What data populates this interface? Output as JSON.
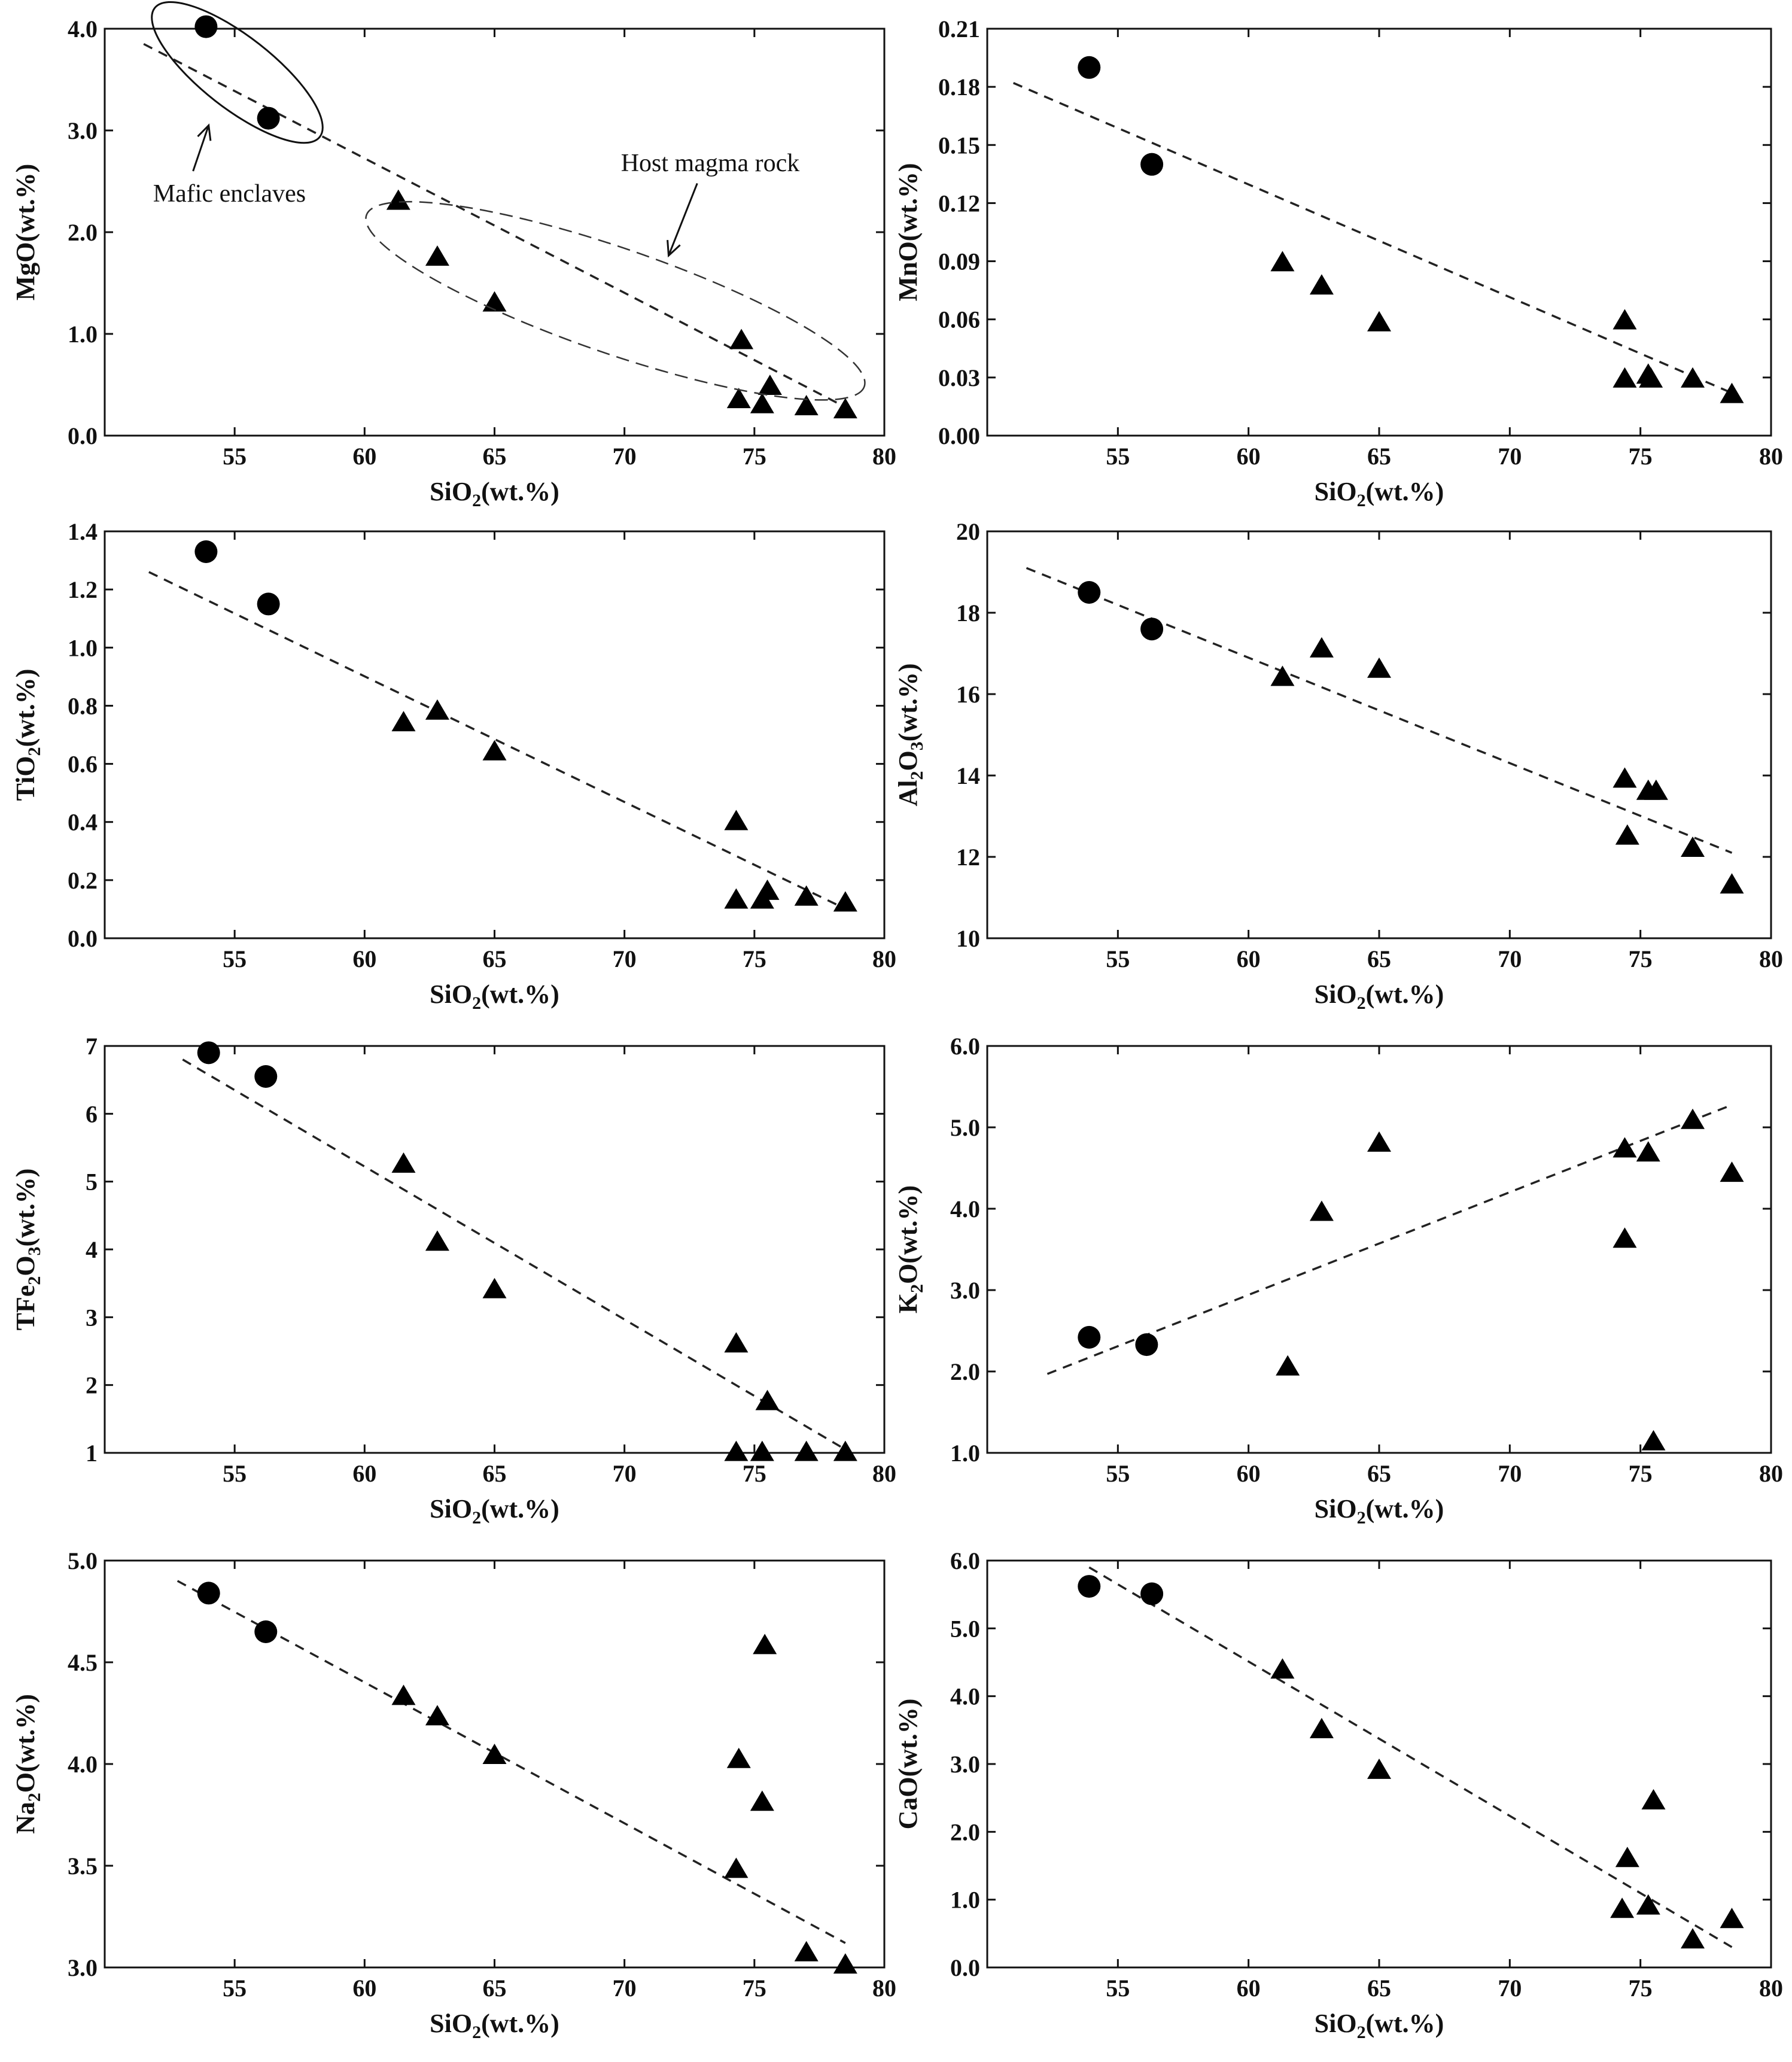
{
  "chart_data": [
    {
      "type": "scatter",
      "panel": "MgO",
      "ylabel_main": "MgO",
      "ylabel_sub": "",
      "ylabel_tail": "",
      "ylabel_unit": "(wt.%)",
      "xlabel_main": "SiO",
      "xlabel_sub": "2",
      "xlabel_unit": "(wt.%)",
      "xlim": [
        50,
        80
      ],
      "ylim": [
        0,
        4
      ],
      "xticks": [
        55,
        60,
        65,
        70,
        75,
        80
      ],
      "yticks": [
        0,
        1,
        2,
        3,
        4
      ],
      "yticks_labels": [
        "0.0",
        "1.0",
        "2.0",
        "3.0",
        "4.0"
      ],
      "series": [
        {
          "name": "Mafic enclaves",
          "marker": "circle",
          "x": [
            53.9,
            56.3
          ],
          "y": [
            4.02,
            3.12
          ]
        },
        {
          "name": "Host magma rock",
          "marker": "triangle",
          "x": [
            61.3,
            62.8,
            65.0,
            74.5,
            74.4,
            75.3,
            75.6,
            77.0,
            78.5
          ],
          "y": [
            2.3,
            1.75,
            1.3,
            0.93,
            0.35,
            0.3,
            0.48,
            0.28,
            0.25
          ]
        }
      ],
      "trend": [
        [
          51.5,
          3.85
        ],
        [
          78.5,
          0.28
        ]
      ],
      "annotations": [
        {
          "text": "Mafic enclaves",
          "x": 54.8,
          "y": 2.3
        },
        {
          "text": "Host magma rock",
          "x": 73.3,
          "y": 2.6
        }
      ]
    },
    {
      "type": "scatter",
      "panel": "MnO",
      "ylabel_main": "MnO",
      "ylabel_sub": "",
      "ylabel_tail": "",
      "ylabel_unit": "(wt.%)",
      "xlabel_main": "SiO",
      "xlabel_sub": "2",
      "xlabel_unit": "(wt.%)",
      "xlim": [
        50,
        80
      ],
      "ylim": [
        0,
        0.21
      ],
      "xticks": [
        55,
        60,
        65,
        70,
        75,
        80
      ],
      "yticks": [
        0,
        0.03,
        0.06,
        0.09,
        0.12,
        0.15,
        0.18,
        0.21
      ],
      "yticks_labels": [
        "0.00",
        "0.03",
        "0.06",
        "0.09",
        "0.12",
        "0.15",
        "0.18",
        "0.21"
      ],
      "series": [
        {
          "name": "Mafic enclaves",
          "marker": "circle",
          "x": [
            53.9,
            56.3
          ],
          "y": [
            0.19,
            0.14
          ]
        },
        {
          "name": "Host magma rock",
          "marker": "triangle",
          "x": [
            61.3,
            62.8,
            65.0,
            74.4,
            74.4,
            75.3,
            75.4,
            77.0,
            78.5
          ],
          "y": [
            0.089,
            0.077,
            0.058,
            0.059,
            0.029,
            0.031,
            0.029,
            0.029,
            0.021
          ]
        }
      ],
      "trend": [
        [
          51.0,
          0.182
        ],
        [
          78.5,
          0.022
        ]
      ],
      "annotations": []
    },
    {
      "type": "scatter",
      "panel": "TiO2",
      "ylabel_main": "TiO",
      "ylabel_sub": "2",
      "ylabel_tail": "",
      "ylabel_unit": "(wt.%)",
      "xlabel_main": "SiO",
      "xlabel_sub": "2",
      "xlabel_unit": "(wt.%)",
      "xlim": [
        50,
        80
      ],
      "ylim": [
        0,
        1.4
      ],
      "xticks": [
        55,
        60,
        65,
        70,
        75,
        80
      ],
      "yticks": [
        0,
        0.2,
        0.4,
        0.6,
        0.8,
        1.0,
        1.2,
        1.4
      ],
      "yticks_labels": [
        "0.0",
        "0.2",
        "0.4",
        "0.6",
        "0.8",
        "1.0",
        "1.2",
        "1.4"
      ],
      "series": [
        {
          "name": "Mafic enclaves",
          "marker": "circle",
          "x": [
            53.9,
            56.3
          ],
          "y": [
            1.33,
            1.15
          ]
        },
        {
          "name": "Host magma rock",
          "marker": "triangle",
          "x": [
            61.5,
            62.8,
            65.0,
            74.3,
            74.3,
            75.3,
            75.5,
            77.0,
            78.5
          ],
          "y": [
            0.74,
            0.78,
            0.64,
            0.4,
            0.13,
            0.13,
            0.16,
            0.14,
            0.12
          ]
        }
      ],
      "trend": [
        [
          51.7,
          1.26
        ],
        [
          78.3,
          0.11
        ]
      ],
      "annotations": []
    },
    {
      "type": "scatter",
      "panel": "Al2O3",
      "ylabel_main": "Al",
      "ylabel_sub": "2",
      "ylabel_tail": "O",
      "ylabel_sub2": "3",
      "ylabel_unit": "(wt.%)",
      "xlabel_main": "SiO",
      "xlabel_sub": "2",
      "xlabel_unit": "(wt.%)",
      "xlim": [
        50,
        80
      ],
      "ylim": [
        10,
        20
      ],
      "xticks": [
        55,
        60,
        65,
        70,
        75,
        80
      ],
      "yticks": [
        10,
        12,
        14,
        16,
        18,
        20
      ],
      "yticks_labels": [
        "10",
        "12",
        "14",
        "16",
        "18",
        "20"
      ],
      "series": [
        {
          "name": "Mafic enclaves",
          "marker": "circle",
          "x": [
            53.9,
            56.3
          ],
          "y": [
            18.5,
            17.6
          ]
        },
        {
          "name": "Host magma rock",
          "marker": "triangle",
          "x": [
            61.3,
            62.8,
            65.0,
            74.4,
            74.5,
            75.3,
            75.6,
            77.0,
            78.5
          ],
          "y": [
            16.4,
            17.1,
            16.6,
            13.9,
            12.5,
            13.6,
            13.6,
            12.2,
            11.3
          ]
        }
      ],
      "trend": [
        [
          51.5,
          19.1
        ],
        [
          78.5,
          12.1
        ]
      ],
      "annotations": []
    },
    {
      "type": "scatter",
      "panel": "TFe2O3",
      "ylabel_main": "TFe",
      "ylabel_sub": "2",
      "ylabel_tail": "O",
      "ylabel_sub2": "3",
      "ylabel_unit": "(wt.%)",
      "xlabel_main": "SiO",
      "xlabel_sub": "2",
      "xlabel_unit": "(wt.%)",
      "xlim": [
        50,
        80
      ],
      "ylim": [
        1,
        7
      ],
      "xticks": [
        55,
        60,
        65,
        70,
        75,
        80
      ],
      "yticks": [
        1,
        2,
        3,
        4,
        5,
        6,
        7
      ],
      "yticks_labels": [
        "1",
        "2",
        "3",
        "4",
        "5",
        "6",
        "7"
      ],
      "series": [
        {
          "name": "Mafic enclaves",
          "marker": "circle",
          "x": [
            54.0,
            56.2
          ],
          "y": [
            6.9,
            6.55
          ]
        },
        {
          "name": "Host magma rock",
          "marker": "triangle",
          "x": [
            61.5,
            62.8,
            65.0,
            74.3,
            74.3,
            75.3,
            75.5,
            77.0,
            78.5
          ],
          "y": [
            5.25,
            4.1,
            3.4,
            2.6,
            1.0,
            1.0,
            1.75,
            1.0,
            1.0
          ]
        }
      ],
      "trend": [
        [
          53.0,
          6.8
        ],
        [
          78.5,
          1.05
        ]
      ],
      "annotations": []
    },
    {
      "type": "scatter",
      "panel": "K2O",
      "ylabel_main": "K",
      "ylabel_sub": "2",
      "ylabel_tail": "O",
      "ylabel_unit": "(wt.%)",
      "xlabel_main": "SiO",
      "xlabel_sub": "2",
      "xlabel_unit": "(wt.%)",
      "xlim": [
        50,
        80
      ],
      "ylim": [
        1,
        6
      ],
      "xticks": [
        55,
        60,
        65,
        70,
        75,
        80
      ],
      "yticks": [
        1,
        2,
        3,
        4,
        5,
        6
      ],
      "yticks_labels": [
        "1.0",
        "2.0",
        "3.0",
        "4.0",
        "5.0",
        "6.0"
      ],
      "series": [
        {
          "name": "Mafic enclaves",
          "marker": "circle",
          "x": [
            53.9,
            56.1
          ],
          "y": [
            2.42,
            2.33
          ]
        },
        {
          "name": "Host magma rock",
          "marker": "triangle",
          "x": [
            61.5,
            62.8,
            65.0,
            74.4,
            74.4,
            75.3,
            75.5,
            77.0,
            78.5
          ],
          "y": [
            2.05,
            3.95,
            4.8,
            4.73,
            3.62,
            4.68,
            1.13,
            5.08,
            4.43
          ]
        }
      ],
      "trend": [
        [
          52.3,
          1.97
        ],
        [
          78.3,
          5.25
        ]
      ],
      "annotations": []
    },
    {
      "type": "scatter",
      "panel": "Na2O",
      "ylabel_main": "Na",
      "ylabel_sub": "2",
      "ylabel_tail": "O",
      "ylabel_unit": "(wt.%)",
      "xlabel_main": "SiO",
      "xlabel_sub": "2",
      "xlabel_unit": "(wt.%)",
      "xlim": [
        50,
        80
      ],
      "ylim": [
        3,
        5
      ],
      "xticks": [
        55,
        60,
        65,
        70,
        75,
        80
      ],
      "yticks": [
        3.0,
        3.5,
        4.0,
        4.5,
        5.0
      ],
      "yticks_labels": [
        "3.0",
        "3.5",
        "4.0",
        "4.5",
        "5.0"
      ],
      "series": [
        {
          "name": "Mafic enclaves",
          "marker": "circle",
          "x": [
            54.0,
            56.2
          ],
          "y": [
            4.84,
            4.65
          ]
        },
        {
          "name": "Host magma rock",
          "marker": "triangle",
          "x": [
            61.5,
            62.8,
            65.0,
            74.3,
            74.4,
            75.3,
            75.4,
            77.0,
            78.5
          ],
          "y": [
            4.33,
            4.23,
            4.04,
            3.48,
            4.02,
            3.81,
            4.58,
            3.07,
            3.01
          ]
        }
      ],
      "trend": [
        [
          52.8,
          4.9
        ],
        [
          78.5,
          3.12
        ]
      ],
      "annotations": []
    },
    {
      "type": "scatter",
      "panel": "CaO",
      "ylabel_main": "CaO",
      "ylabel_sub": "",
      "ylabel_tail": "",
      "ylabel_unit": "(wt.%)",
      "xlabel_main": "SiO",
      "xlabel_sub": "2",
      "xlabel_unit": "(wt.%)",
      "xlim": [
        50,
        80
      ],
      "ylim": [
        0,
        6
      ],
      "xticks": [
        55,
        60,
        65,
        70,
        75,
        80
      ],
      "yticks": [
        0,
        1,
        2,
        3,
        4,
        5,
        6
      ],
      "yticks_labels": [
        "0.0",
        "1.0",
        "2.0",
        "3.0",
        "4.0",
        "5.0",
        "6.0"
      ],
      "series": [
        {
          "name": "Mafic enclaves",
          "marker": "circle",
          "x": [
            53.9,
            56.3
          ],
          "y": [
            5.62,
            5.51
          ]
        },
        {
          "name": "Host magma rock",
          "marker": "triangle",
          "x": [
            61.3,
            62.8,
            65.0,
            74.3,
            74.5,
            75.3,
            75.5,
            77.0,
            78.5
          ],
          "y": [
            4.38,
            3.5,
            2.9,
            0.85,
            1.6,
            0.9,
            2.45,
            0.4,
            0.7
          ]
        }
      ],
      "trend": [
        [
          53.9,
          5.9
        ],
        [
          78.5,
          0.3
        ]
      ],
      "annotations": []
    }
  ]
}
